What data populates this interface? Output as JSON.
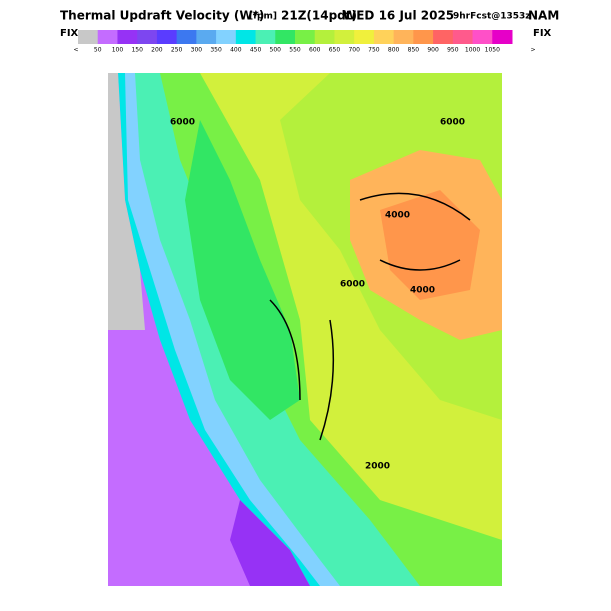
{
  "header": {
    "title": "Thermal Updraft Velocity (W*)",
    "units": "[fpm]",
    "time": "21Z(14pdt)",
    "date": "WED 16 Jul 2025",
    "forecast": "9hrFcst@1353z",
    "model": "NAM"
  },
  "legend": {
    "fix_left": "FIX",
    "fix_right": "FIX",
    "low": "<",
    "high": ">",
    "labels": [
      "50",
      "100",
      "150",
      "200",
      "250",
      "300",
      "350",
      "400",
      "450",
      "500",
      "550",
      "600",
      "650",
      "700",
      "750",
      "800",
      "850",
      "900",
      "950",
      "1000",
      "1050"
    ],
    "colors": [
      "#c8c8c8",
      "#c46cff",
      "#9632f5",
      "#7d46f0",
      "#5a3cff",
      "#3c78f0",
      "#5aaaf0",
      "#82d2ff",
      "#00e6e6",
      "#4bf0b4",
      "#32e664",
      "#78f046",
      "#b4f03c",
      "#d2f03c",
      "#f0f03c",
      "#ffd25a",
      "#ffb45a",
      "#ff964b",
      "#ff6464",
      "#ff5a8c",
      "#ff50c8",
      "#e600c8"
    ]
  },
  "map": {
    "contour_labels": [
      "6000",
      "6000",
      "4000",
      "4000",
      "2000",
      "6000"
    ]
  }
}
